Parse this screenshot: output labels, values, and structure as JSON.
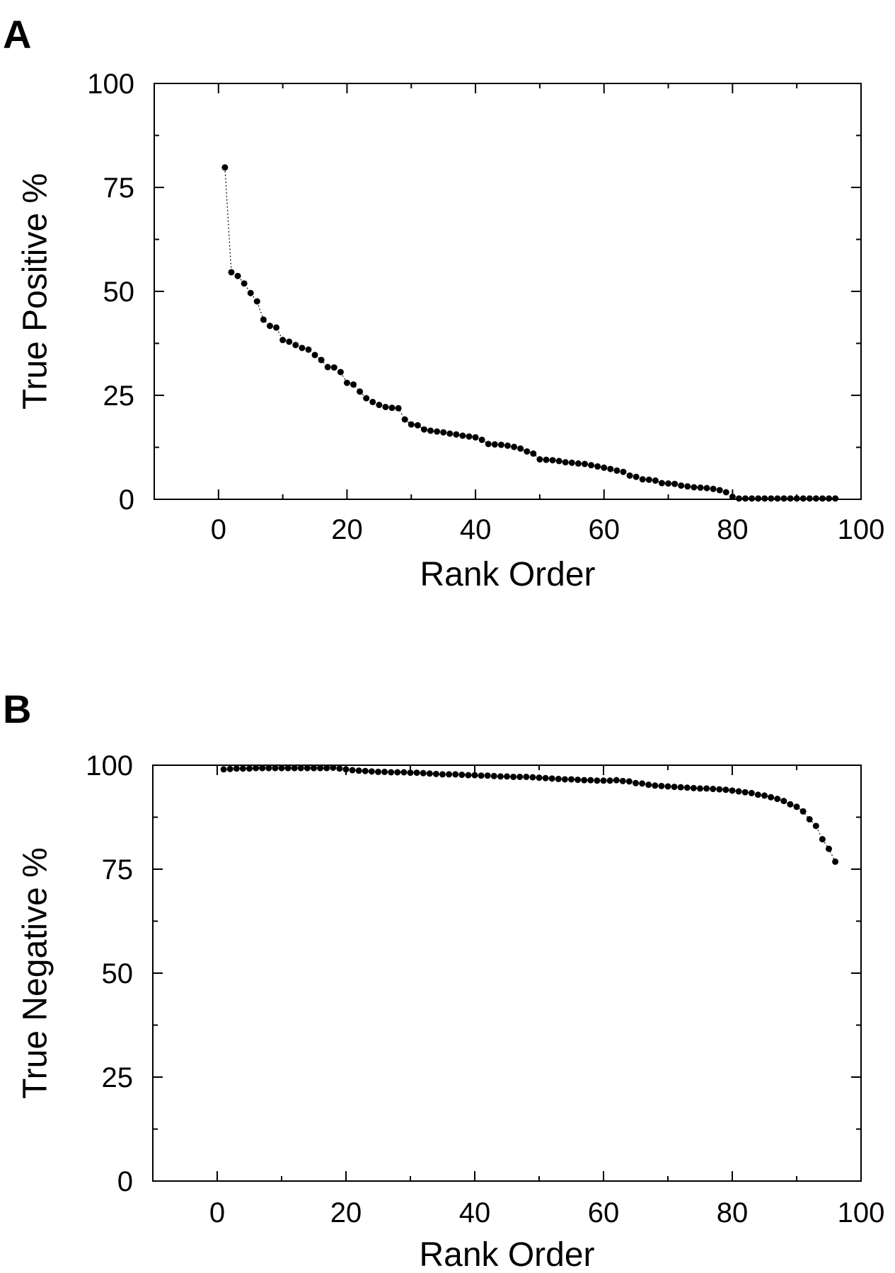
{
  "chart_data": [
    {
      "panel": "A",
      "type": "scatter",
      "xlabel": "Rank Order",
      "ylabel": "True Positive %",
      "xlim": [
        -10,
        100
      ],
      "ylim": [
        0,
        100
      ],
      "xticks": [
        0,
        20,
        40,
        60,
        80,
        100
      ],
      "yticks": [
        0,
        25,
        50,
        75,
        100
      ],
      "grid": false,
      "series": [
        {
          "x": [
            1,
            2,
            3,
            4,
            5,
            6,
            7,
            8,
            9,
            10,
            11,
            12,
            13,
            14,
            15,
            16,
            17,
            18,
            19,
            20,
            21,
            22,
            23,
            24,
            25,
            26,
            27,
            28,
            29,
            30,
            31,
            32,
            33,
            34,
            35,
            36,
            37,
            38,
            39,
            40,
            41,
            42,
            43,
            44,
            45,
            46,
            47,
            48,
            49,
            50,
            51,
            52,
            53,
            54,
            55,
            56,
            57,
            58,
            59,
            60,
            61,
            62,
            63,
            64,
            65,
            66,
            67,
            68,
            69,
            70,
            71,
            72,
            73,
            74,
            75,
            76,
            77,
            78,
            79,
            80,
            81,
            82,
            83,
            84,
            85,
            86,
            87,
            88,
            89,
            90,
            91,
            92,
            93,
            94,
            95,
            96
          ],
          "y": [
            79.8,
            54.6,
            53.7,
            51.9,
            49.6,
            47.6,
            43.2,
            41.7,
            41.3,
            38.3,
            37.9,
            37.1,
            36.4,
            36.0,
            34.7,
            33.5,
            31.8,
            31.7,
            30.6,
            28.0,
            27.6,
            25.9,
            24.3,
            23.4,
            22.7,
            22.2,
            22.0,
            21.9,
            19.2,
            18.0,
            17.8,
            16.8,
            16.5,
            16.3,
            16.1,
            15.8,
            15.6,
            15.3,
            15.1,
            14.9,
            14.3,
            13.3,
            13.2,
            13.1,
            12.9,
            12.6,
            12.2,
            11.5,
            11.0,
            9.6,
            9.5,
            9.4,
            9.2,
            8.9,
            8.8,
            8.6,
            8.5,
            8.2,
            7.9,
            7.6,
            7.3,
            6.9,
            6.6,
            5.7,
            5.4,
            4.8,
            4.7,
            4.5,
            3.9,
            3.8,
            3.7,
            3.3,
            3.1,
            2.9,
            2.8,
            2.7,
            2.5,
            2.2,
            1.7,
            0.6,
            0.2,
            0.2,
            0.2,
            0.2,
            0.2,
            0.2,
            0.2,
            0.2,
            0.2,
            0.2,
            0.2,
            0.2,
            0.2,
            0.2,
            0.2,
            0.2
          ]
        }
      ]
    },
    {
      "panel": "B",
      "type": "scatter",
      "xlabel": "Rank Order",
      "ylabel": "True Negative %",
      "xlim": [
        -10,
        100
      ],
      "ylim": [
        0,
        100
      ],
      "xticks": [
        0,
        20,
        40,
        60,
        80,
        100
      ],
      "yticks": [
        0,
        25,
        50,
        75,
        100
      ],
      "grid": false,
      "series": [
        {
          "x": [
            1,
            2,
            3,
            4,
            5,
            6,
            7,
            8,
            9,
            10,
            11,
            12,
            13,
            14,
            15,
            16,
            17,
            18,
            19,
            20,
            21,
            22,
            23,
            24,
            25,
            26,
            27,
            28,
            29,
            30,
            31,
            32,
            33,
            34,
            35,
            36,
            37,
            38,
            39,
            40,
            41,
            42,
            43,
            44,
            45,
            46,
            47,
            48,
            49,
            50,
            51,
            52,
            53,
            54,
            55,
            56,
            57,
            58,
            59,
            60,
            61,
            62,
            63,
            64,
            65,
            66,
            67,
            68,
            69,
            70,
            71,
            72,
            73,
            74,
            75,
            76,
            77,
            78,
            79,
            80,
            81,
            82,
            83,
            84,
            85,
            86,
            87,
            88,
            89,
            90,
            91,
            92,
            93,
            94,
            95,
            96
          ],
          "y": [
            99.0,
            99.1,
            99.2,
            99.2,
            99.2,
            99.3,
            99.3,
            99.3,
            99.3,
            99.3,
            99.3,
            99.3,
            99.3,
            99.3,
            99.3,
            99.3,
            99.3,
            99.4,
            99.2,
            99.0,
            98.8,
            98.7,
            98.6,
            98.5,
            98.4,
            98.4,
            98.3,
            98.3,
            98.3,
            98.2,
            98.2,
            98.1,
            98.0,
            97.9,
            97.8,
            97.8,
            97.8,
            97.7,
            97.6,
            97.6,
            97.5,
            97.5,
            97.4,
            97.3,
            97.3,
            97.2,
            97.2,
            97.2,
            97.1,
            97.0,
            96.9,
            96.8,
            96.7,
            96.6,
            96.6,
            96.5,
            96.4,
            96.4,
            96.3,
            96.3,
            96.3,
            96.4,
            96.2,
            96.1,
            95.7,
            95.6,
            95.3,
            95.1,
            95.0,
            94.9,
            94.8,
            94.7,
            94.6,
            94.5,
            94.4,
            94.4,
            94.3,
            94.2,
            94.1,
            93.9,
            93.7,
            93.5,
            93.3,
            92.9,
            92.7,
            92.3,
            91.9,
            91.4,
            90.6,
            90.0,
            88.9,
            87.0,
            85.4,
            82.2,
            79.9,
            76.8
          ]
        }
      ]
    }
  ]
}
